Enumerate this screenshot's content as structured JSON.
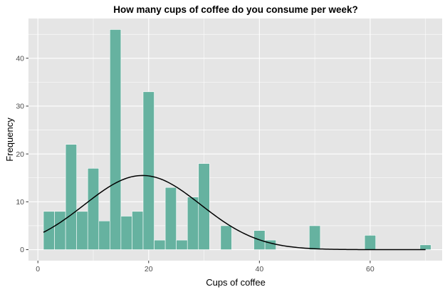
{
  "chart_data": {
    "type": "bar",
    "title": "How many cups of coffee do you consume per week?",
    "xlabel": "Cups of coffee",
    "ylabel": "Frequency",
    "xlim": [
      -1.7,
      73
    ],
    "ylim": [
      -2.3,
      48.3
    ],
    "x_ticks": [
      0,
      20,
      40,
      60
    ],
    "y_ticks": [
      0,
      10,
      20,
      30,
      40
    ],
    "bin_width": 2,
    "bins": [
      {
        "x": 2,
        "count": 8
      },
      {
        "x": 4,
        "count": 8
      },
      {
        "x": 6,
        "count": 22
      },
      {
        "x": 8,
        "count": 8
      },
      {
        "x": 10,
        "count": 17
      },
      {
        "x": 12,
        "count": 6
      },
      {
        "x": 14,
        "count": 46
      },
      {
        "x": 16,
        "count": 7
      },
      {
        "x": 18,
        "count": 8
      },
      {
        "x": 20,
        "count": 33
      },
      {
        "x": 22,
        "count": 2
      },
      {
        "x": 24,
        "count": 13
      },
      {
        "x": 26,
        "count": 2
      },
      {
        "x": 28,
        "count": 11
      },
      {
        "x": 30,
        "count": 18
      },
      {
        "x": 34,
        "count": 5
      },
      {
        "x": 40,
        "count": 4
      },
      {
        "x": 42,
        "count": 2
      },
      {
        "x": 50,
        "count": 5
      },
      {
        "x": 60,
        "count": 3
      },
      {
        "x": 70,
        "count": 1
      }
    ],
    "density_curve": {
      "x_from": 1,
      "x_to": 70,
      "mean": 18.9,
      "sd": 10.5,
      "peak": 15.5
    },
    "grid": true,
    "legend": "none",
    "colors": {
      "bar_fill": "#66b2a0",
      "bar_edge": "#ffffff",
      "panel": "#e5e5e5",
      "grid_major": "#ffffff",
      "curve": "#000000"
    }
  }
}
